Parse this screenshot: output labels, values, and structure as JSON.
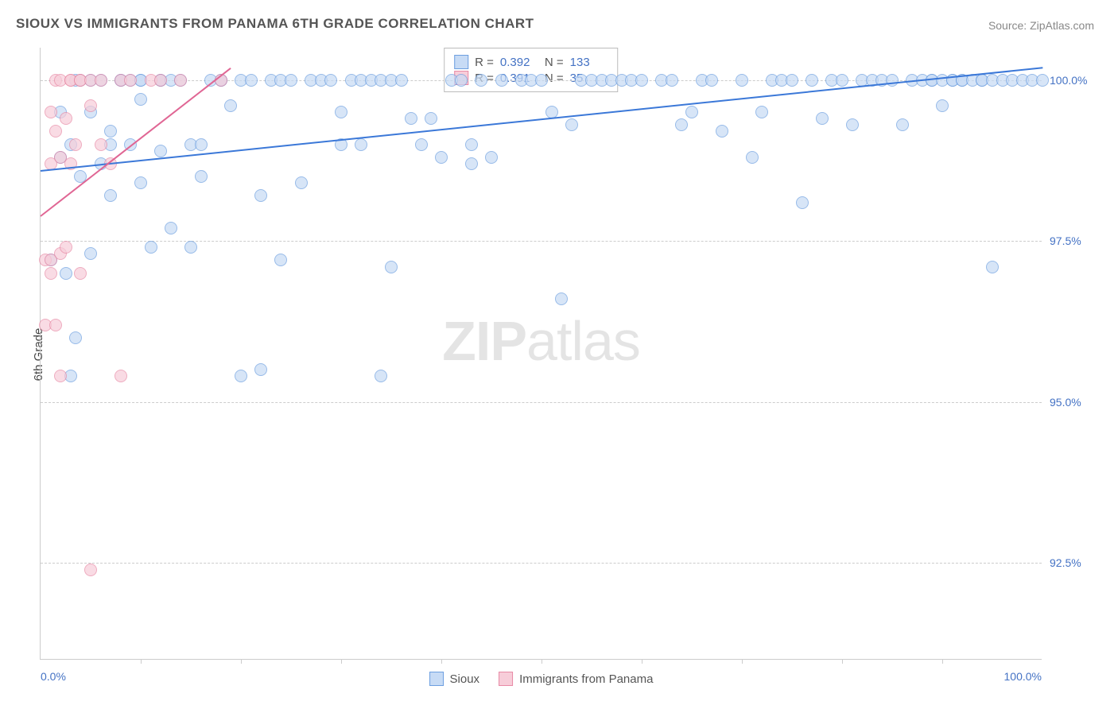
{
  "title": "SIOUX VS IMMIGRANTS FROM PANAMA 6TH GRADE CORRELATION CHART",
  "source_label": "Source: ",
  "source_name": "ZipAtlas.com",
  "ylabel": "6th Grade",
  "watermark_bold": "ZIP",
  "watermark_rest": "atlas",
  "chart": {
    "type": "scatter",
    "xlim": [
      0,
      100
    ],
    "ylim": [
      91,
      100.5
    ],
    "x_axis_min_label": "0.0%",
    "x_axis_max_label": "100.0%",
    "xtick_positions": [
      10,
      20,
      30,
      40,
      50,
      60,
      70,
      80,
      90
    ],
    "y_gridlines": [
      92.5,
      95.0,
      97.5,
      100.0
    ],
    "y_labels": [
      "92.5%",
      "95.0%",
      "97.5%",
      "100.0%"
    ],
    "background_color": "#ffffff",
    "grid_color": "#cccccc",
    "marker_radius": 8,
    "marker_stroke_width": 1.2,
    "series": [
      {
        "name": "Sioux",
        "fill": "#c7dbf5",
        "stroke": "#6d9fe0",
        "fill_opacity": 0.7,
        "R": "0.392",
        "N": "133",
        "trend": {
          "x1": 0,
          "y1": 98.6,
          "x2": 100,
          "y2": 100.2,
          "color": "#3b78d8",
          "width": 2
        },
        "points": [
          [
            1,
            97.2
          ],
          [
            2,
            98.8
          ],
          [
            2,
            99.5
          ],
          [
            2.5,
            97.0
          ],
          [
            3,
            99.0
          ],
          [
            3,
            95.4
          ],
          [
            3.5,
            96.0
          ],
          [
            3.5,
            100
          ],
          [
            4,
            98.5
          ],
          [
            4,
            100
          ],
          [
            5,
            97.3
          ],
          [
            5,
            100
          ],
          [
            5,
            99.5
          ],
          [
            6,
            100
          ],
          [
            6,
            98.7
          ],
          [
            7,
            99.0
          ],
          [
            7,
            99.2
          ],
          [
            7,
            98.2
          ],
          [
            8,
            100
          ],
          [
            8,
            100
          ],
          [
            9,
            99.0
          ],
          [
            9,
            100
          ],
          [
            10,
            100
          ],
          [
            10,
            98.4
          ],
          [
            10,
            100
          ],
          [
            10,
            99.7
          ],
          [
            11,
            97.4
          ],
          [
            12,
            98.9
          ],
          [
            12,
            100
          ],
          [
            12,
            100
          ],
          [
            13,
            97.7
          ],
          [
            13,
            100
          ],
          [
            14,
            100
          ],
          [
            15,
            99.0
          ],
          [
            15,
            97.4
          ],
          [
            16,
            99.0
          ],
          [
            16,
            98.5
          ],
          [
            17,
            100
          ],
          [
            18,
            100
          ],
          [
            18,
            100
          ],
          [
            19,
            99.6
          ],
          [
            20,
            100
          ],
          [
            20,
            95.4
          ],
          [
            21,
            100
          ],
          [
            22,
            95.5
          ],
          [
            22,
            98.2
          ],
          [
            23,
            100
          ],
          [
            24,
            100
          ],
          [
            24,
            97.2
          ],
          [
            25,
            100
          ],
          [
            26,
            98.4
          ],
          [
            27,
            100
          ],
          [
            28,
            100
          ],
          [
            29,
            100
          ],
          [
            30,
            99.5
          ],
          [
            30,
            99.0
          ],
          [
            31,
            100
          ],
          [
            32,
            100
          ],
          [
            32,
            99.0
          ],
          [
            33,
            100
          ],
          [
            34,
            100
          ],
          [
            34,
            95.4
          ],
          [
            35,
            100
          ],
          [
            35,
            97.1
          ],
          [
            36,
            100
          ],
          [
            37,
            99.4
          ],
          [
            38,
            99.0
          ],
          [
            39,
            99.4
          ],
          [
            40,
            98.8
          ],
          [
            41,
            100
          ],
          [
            42,
            100
          ],
          [
            43,
            98.7
          ],
          [
            43,
            99.0
          ],
          [
            44,
            100
          ],
          [
            45,
            98.8
          ],
          [
            46,
            100
          ],
          [
            48,
            100
          ],
          [
            49,
            100
          ],
          [
            50,
            100
          ],
          [
            51,
            99.5
          ],
          [
            52,
            96.6
          ],
          [
            53,
            99.3
          ],
          [
            54,
            100
          ],
          [
            55,
            100
          ],
          [
            56,
            100
          ],
          [
            57,
            100
          ],
          [
            58,
            100
          ],
          [
            59,
            100
          ],
          [
            60,
            100
          ],
          [
            62,
            100
          ],
          [
            63,
            100
          ],
          [
            64,
            99.3
          ],
          [
            65,
            99.5
          ],
          [
            66,
            100
          ],
          [
            67,
            100
          ],
          [
            68,
            99.2
          ],
          [
            70,
            100
          ],
          [
            71,
            98.8
          ],
          [
            72,
            99.5
          ],
          [
            73,
            100
          ],
          [
            74,
            100
          ],
          [
            75,
            100
          ],
          [
            76,
            98.1
          ],
          [
            77,
            100
          ],
          [
            78,
            99.4
          ],
          [
            79,
            100
          ],
          [
            80,
            100
          ],
          [
            81,
            99.3
          ],
          [
            82,
            100
          ],
          [
            83,
            100
          ],
          [
            84,
            100
          ],
          [
            85,
            100
          ],
          [
            86,
            99.3
          ],
          [
            87,
            100
          ],
          [
            88,
            100
          ],
          [
            89,
            100
          ],
          [
            89,
            100
          ],
          [
            90,
            100
          ],
          [
            90,
            99.6
          ],
          [
            91,
            100
          ],
          [
            91,
            100
          ],
          [
            92,
            100
          ],
          [
            92,
            100
          ],
          [
            93,
            100
          ],
          [
            94,
            100
          ],
          [
            94,
            100
          ],
          [
            95,
            100
          ],
          [
            95,
            97.1
          ],
          [
            96,
            100
          ],
          [
            97,
            100
          ],
          [
            98,
            100
          ],
          [
            99,
            100
          ],
          [
            100,
            100
          ]
        ]
      },
      {
        "name": "Immigrants from Panama",
        "fill": "#f7cdd9",
        "stroke": "#e88aa6",
        "fill_opacity": 0.7,
        "R": "0.391",
        "N": "35",
        "trend": {
          "x1": 0,
          "y1": 97.9,
          "x2": 19,
          "y2": 100.2,
          "color": "#e06694",
          "width": 2
        },
        "points": [
          [
            0.5,
            97.2
          ],
          [
            0.5,
            96.2
          ],
          [
            1,
            99.5
          ],
          [
            1,
            98.7
          ],
          [
            1,
            97.2
          ],
          [
            1,
            97.0
          ],
          [
            1.5,
            96.2
          ],
          [
            1.5,
            100
          ],
          [
            1.5,
            99.2
          ],
          [
            2,
            98.8
          ],
          [
            2,
            97.3
          ],
          [
            2,
            100
          ],
          [
            2,
            95.4
          ],
          [
            2.5,
            99.4
          ],
          [
            2.5,
            97.4
          ],
          [
            3,
            100
          ],
          [
            3,
            98.7
          ],
          [
            3,
            100
          ],
          [
            3.5,
            99.0
          ],
          [
            4,
            100
          ],
          [
            4,
            100
          ],
          [
            4,
            97.0
          ],
          [
            5,
            100
          ],
          [
            5,
            99.6
          ],
          [
            5,
            92.4
          ],
          [
            6,
            100
          ],
          [
            6,
            99.0
          ],
          [
            7,
            98.7
          ],
          [
            8,
            100
          ],
          [
            8,
            95.4
          ],
          [
            9,
            100
          ],
          [
            11,
            100
          ],
          [
            12,
            100
          ],
          [
            14,
            100
          ],
          [
            18,
            100
          ]
        ]
      }
    ],
    "legend_top_labels": {
      "r_prefix": "R =",
      "n_prefix": "N ="
    },
    "legend_bottom": [
      "Sioux",
      "Immigrants from Panama"
    ]
  }
}
